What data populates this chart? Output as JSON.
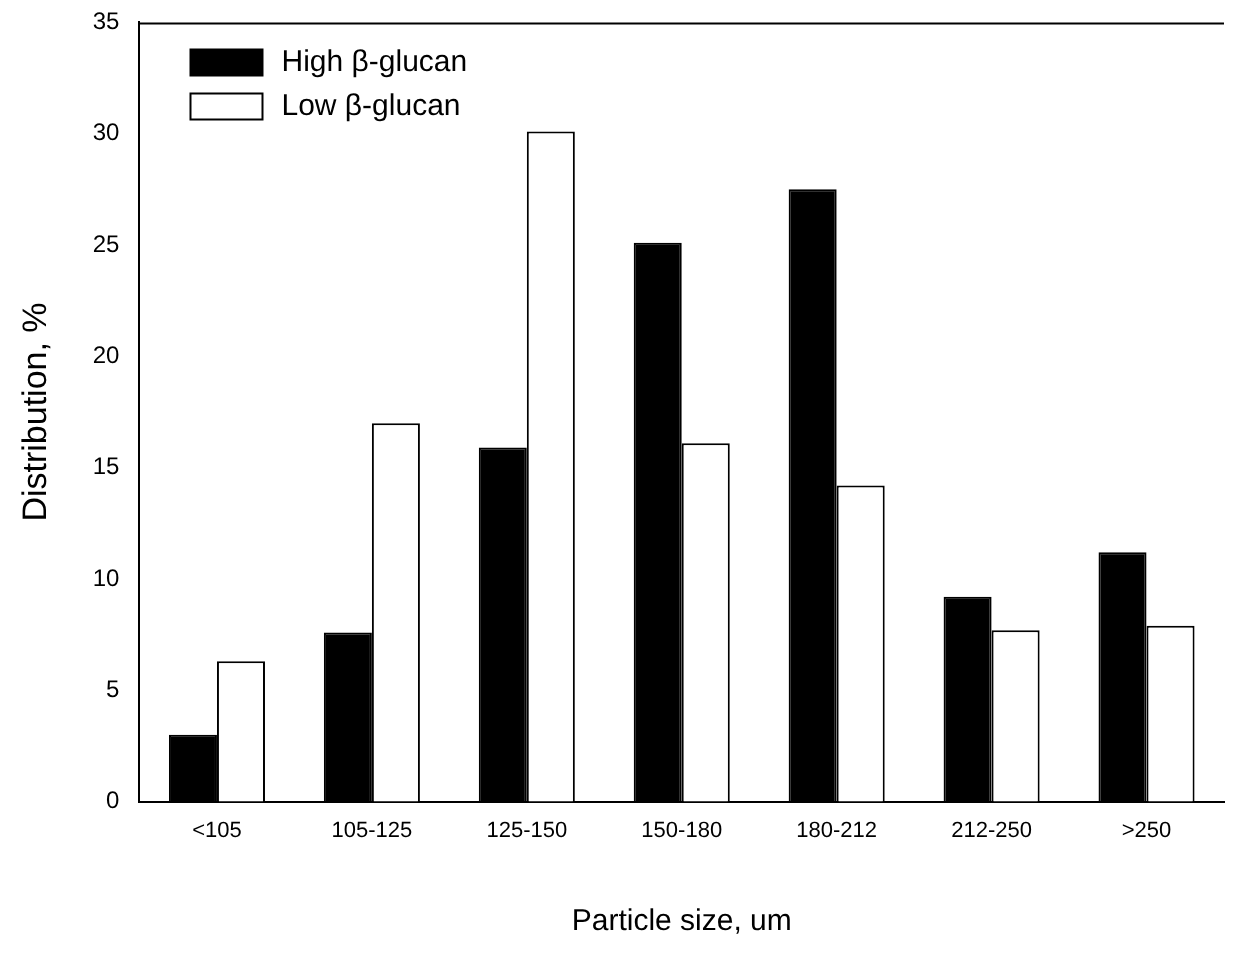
{
  "chart_data": {
    "type": "bar",
    "xlabel": "Particle size, um",
    "ylabel": "Distribution, %",
    "categories": [
      "<105",
      "105-125",
      "125-150",
      "150-180",
      "180-212",
      "212-250",
      ">250"
    ],
    "series": [
      {
        "name": "High β-glucan",
        "color": "#000000",
        "values": [
          3.0,
          7.6,
          15.9,
          25.1,
          27.5,
          9.2,
          11.2
        ]
      },
      {
        "name": "Low β-glucan",
        "color": "#ffffff",
        "values": [
          6.3,
          17.0,
          30.1,
          16.1,
          14.2,
          7.7,
          7.9
        ]
      }
    ],
    "ylim": [
      0,
      35
    ],
    "yticks": [
      0,
      5,
      10,
      15,
      20,
      25,
      30,
      35
    ],
    "grid": false,
    "legend": "top left"
  }
}
